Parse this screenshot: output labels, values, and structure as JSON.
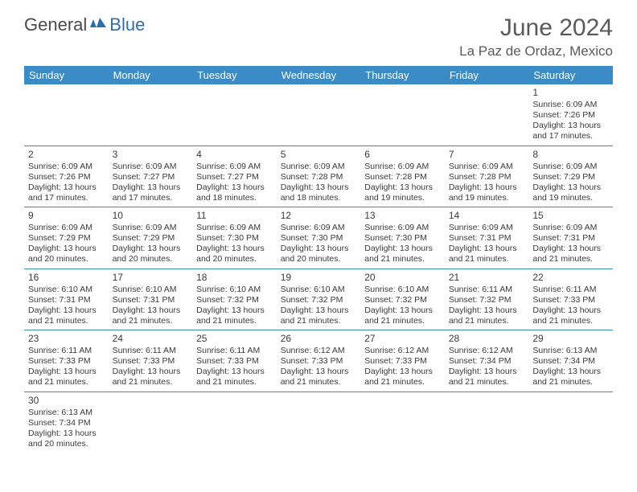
{
  "logo": {
    "general": "General",
    "blue": "Blue"
  },
  "title": "June 2024",
  "location": "La Paz de Ordaz, Mexico",
  "day_headers": [
    "Sunday",
    "Monday",
    "Tuesday",
    "Wednesday",
    "Thursday",
    "Friday",
    "Saturday"
  ],
  "colors": {
    "header_bg": "#3b8bc6",
    "header_fg": "#ffffff",
    "dim_bg": "#e8e8e8"
  },
  "weeks": [
    [
      null,
      null,
      null,
      null,
      null,
      null,
      {
        "n": "1",
        "sr": "6:09 AM",
        "ss": "7:26 PM",
        "d1": "13 hours",
        "d2": "and 17 minutes."
      }
    ],
    [
      {
        "n": "2",
        "sr": "6:09 AM",
        "ss": "7:26 PM",
        "d1": "13 hours",
        "d2": "and 17 minutes.",
        "dim": true
      },
      {
        "n": "3",
        "sr": "6:09 AM",
        "ss": "7:27 PM",
        "d1": "13 hours",
        "d2": "and 17 minutes.",
        "dim": true
      },
      {
        "n": "4",
        "sr": "6:09 AM",
        "ss": "7:27 PM",
        "d1": "13 hours",
        "d2": "and 18 minutes."
      },
      {
        "n": "5",
        "sr": "6:09 AM",
        "ss": "7:28 PM",
        "d1": "13 hours",
        "d2": "and 18 minutes."
      },
      {
        "n": "6",
        "sr": "6:09 AM",
        "ss": "7:28 PM",
        "d1": "13 hours",
        "d2": "and 19 minutes."
      },
      {
        "n": "7",
        "sr": "6:09 AM",
        "ss": "7:28 PM",
        "d1": "13 hours",
        "d2": "and 19 minutes."
      },
      {
        "n": "8",
        "sr": "6:09 AM",
        "ss": "7:29 PM",
        "d1": "13 hours",
        "d2": "and 19 minutes."
      }
    ],
    [
      {
        "n": "9",
        "sr": "6:09 AM",
        "ss": "7:29 PM",
        "d1": "13 hours",
        "d2": "and 20 minutes.",
        "dim": true
      },
      {
        "n": "10",
        "sr": "6:09 AM",
        "ss": "7:29 PM",
        "d1": "13 hours",
        "d2": "and 20 minutes.",
        "dim": true
      },
      {
        "n": "11",
        "sr": "6:09 AM",
        "ss": "7:30 PM",
        "d1": "13 hours",
        "d2": "and 20 minutes."
      },
      {
        "n": "12",
        "sr": "6:09 AM",
        "ss": "7:30 PM",
        "d1": "13 hours",
        "d2": "and 20 minutes."
      },
      {
        "n": "13",
        "sr": "6:09 AM",
        "ss": "7:30 PM",
        "d1": "13 hours",
        "d2": "and 21 minutes."
      },
      {
        "n": "14",
        "sr": "6:09 AM",
        "ss": "7:31 PM",
        "d1": "13 hours",
        "d2": "and 21 minutes."
      },
      {
        "n": "15",
        "sr": "6:09 AM",
        "ss": "7:31 PM",
        "d1": "13 hours",
        "d2": "and 21 minutes."
      }
    ],
    [
      {
        "n": "16",
        "sr": "6:10 AM",
        "ss": "7:31 PM",
        "d1": "13 hours",
        "d2": "and 21 minutes.",
        "dim": true
      },
      {
        "n": "17",
        "sr": "6:10 AM",
        "ss": "7:31 PM",
        "d1": "13 hours",
        "d2": "and 21 minutes.",
        "dim": true
      },
      {
        "n": "18",
        "sr": "6:10 AM",
        "ss": "7:32 PM",
        "d1": "13 hours",
        "d2": "and 21 minutes."
      },
      {
        "n": "19",
        "sr": "6:10 AM",
        "ss": "7:32 PM",
        "d1": "13 hours",
        "d2": "and 21 minutes."
      },
      {
        "n": "20",
        "sr": "6:10 AM",
        "ss": "7:32 PM",
        "d1": "13 hours",
        "d2": "and 21 minutes."
      },
      {
        "n": "21",
        "sr": "6:11 AM",
        "ss": "7:32 PM",
        "d1": "13 hours",
        "d2": "and 21 minutes."
      },
      {
        "n": "22",
        "sr": "6:11 AM",
        "ss": "7:33 PM",
        "d1": "13 hours",
        "d2": "and 21 minutes."
      }
    ],
    [
      {
        "n": "23",
        "sr": "6:11 AM",
        "ss": "7:33 PM",
        "d1": "13 hours",
        "d2": "and 21 minutes.",
        "dim": true
      },
      {
        "n": "24",
        "sr": "6:11 AM",
        "ss": "7:33 PM",
        "d1": "13 hours",
        "d2": "and 21 minutes.",
        "dim": true
      },
      {
        "n": "25",
        "sr": "6:11 AM",
        "ss": "7:33 PM",
        "d1": "13 hours",
        "d2": "and 21 minutes."
      },
      {
        "n": "26",
        "sr": "6:12 AM",
        "ss": "7:33 PM",
        "d1": "13 hours",
        "d2": "and 21 minutes."
      },
      {
        "n": "27",
        "sr": "6:12 AM",
        "ss": "7:33 PM",
        "d1": "13 hours",
        "d2": "and 21 minutes."
      },
      {
        "n": "28",
        "sr": "6:12 AM",
        "ss": "7:34 PM",
        "d1": "13 hours",
        "d2": "and 21 minutes."
      },
      {
        "n": "29",
        "sr": "6:13 AM",
        "ss": "7:34 PM",
        "d1": "13 hours",
        "d2": "and 21 minutes."
      }
    ],
    [
      {
        "n": "30",
        "sr": "6:13 AM",
        "ss": "7:34 PM",
        "d1": "13 hours",
        "d2": "and 20 minutes.",
        "dim": true
      },
      null,
      null,
      null,
      null,
      null,
      null
    ]
  ],
  "labels": {
    "sunrise": "Sunrise:",
    "sunset": "Sunset:",
    "daylight": "Daylight:"
  }
}
